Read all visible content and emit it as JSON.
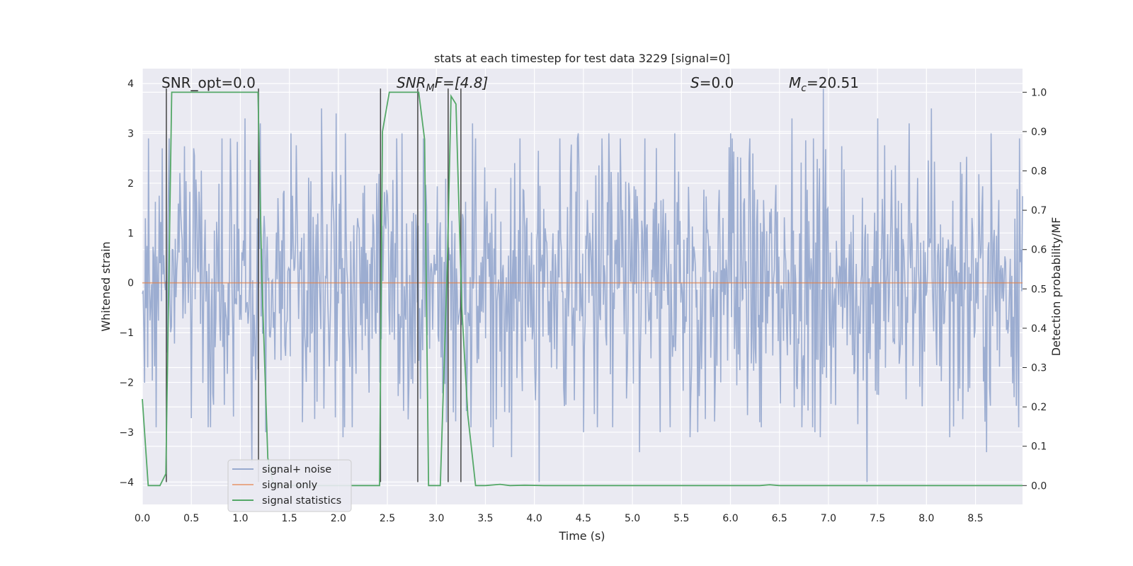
{
  "chart_data": {
    "type": "line",
    "title": "stats at each timestep for test data 3229 [signal=0]",
    "xlabel": "Time (s)",
    "ylabel": "Whitened strain",
    "ylabel_right": "Detection probability/MF",
    "xlim": [
      0.0,
      8.98
    ],
    "ylim": [
      -4.45,
      4.3
    ],
    "ylim_right": [
      -0.048,
      1.06
    ],
    "x_ticks": [
      0.0,
      0.5,
      1.0,
      1.5,
      2.0,
      2.5,
      3.0,
      3.5,
      4.0,
      4.5,
      5.0,
      5.5,
      6.0,
      6.5,
      7.0,
      7.5,
      8.0,
      8.5
    ],
    "x_tick_labels": [
      "0.0",
      "0.5",
      "1.0",
      "1.5",
      "2.0",
      "2.5",
      "3.0",
      "3.5",
      "4.0",
      "4.5",
      "5.0",
      "5.5",
      "6.0",
      "6.5",
      "7.0",
      "7.5",
      "8.0",
      "8.5"
    ],
    "y_ticks": [
      4,
      3,
      2,
      1,
      0,
      -1,
      -2,
      -3,
      -4
    ],
    "y_tick_labels": [
      "4",
      "3",
      "2",
      "1",
      "0",
      "−1",
      "−2",
      "−3",
      "−4"
    ],
    "y2_ticks": [
      1.0,
      0.9,
      0.8,
      0.7,
      0.6,
      0.5,
      0.4,
      0.3,
      0.2,
      0.1,
      0.0
    ],
    "y2_tick_labels": [
      "1.0",
      "0.9",
      "0.8",
      "0.7",
      "0.6",
      "0.5",
      "0.4",
      "0.3",
      "0.2",
      "0.1",
      "0.0"
    ],
    "annotations": {
      "snr_opt": "SNR_opt=0.0",
      "snr_mf_main": "SNR",
      "snr_mf_sub": "M",
      "snr_mf_rest": "F=[4.8]",
      "s_italic": "S",
      "s_rest": "=0.0",
      "mc_main": "M",
      "mc_sub": "c",
      "mc_rest": "=20.51"
    },
    "legend": {
      "position": "lower-left",
      "entries": [
        "signal+ noise",
        "signal only",
        "signal statistics"
      ]
    },
    "noise_series": {
      "name": "signal+ noise",
      "color": "#98aacf",
      "points": 1150,
      "typical_amplitude": 1.7,
      "peaks": [
        [
          0.2,
          2.7
        ],
        [
          0.52,
          2.7
        ],
        [
          0.9,
          2.9
        ],
        [
          1.05,
          3.3
        ],
        [
          1.12,
          -3.6
        ],
        [
          1.2,
          3.2
        ],
        [
          1.26,
          -3.0
        ],
        [
          1.52,
          3.0
        ],
        [
          1.63,
          -2.8
        ],
        [
          1.83,
          3.5
        ],
        [
          1.98,
          3.4
        ],
        [
          2.07,
          3.0
        ],
        [
          2.05,
          -3.1
        ],
        [
          2.65,
          3.0
        ],
        [
          3.1,
          -2.8
        ],
        [
          3.17,
          -2.6
        ],
        [
          3.37,
          3.2
        ],
        [
          3.58,
          -3.3
        ],
        [
          3.77,
          -3.5
        ],
        [
          3.85,
          2.9
        ],
        [
          4.05,
          -4.0
        ],
        [
          4.26,
          2.9
        ],
        [
          4.45,
          3.0
        ],
        [
          4.5,
          -3.0
        ],
        [
          4.76,
          3.0
        ],
        [
          4.8,
          -2.9
        ],
        [
          5.07,
          -3.4
        ],
        [
          5.13,
          2.9
        ],
        [
          5.28,
          -3.0
        ],
        [
          5.43,
          3.0
        ],
        [
          5.59,
          -3.1
        ],
        [
          5.67,
          -3.0
        ],
        [
          6.0,
          3.0
        ],
        [
          6.02,
          2.9
        ],
        [
          6.3,
          -2.8
        ],
        [
          6.63,
          3.3
        ],
        [
          6.86,
          -3.0
        ],
        [
          6.95,
          3.9
        ],
        [
          6.92,
          -3.1
        ],
        [
          7.39,
          -4.0
        ],
        [
          7.5,
          3.3
        ],
        [
          7.82,
          3.2
        ],
        [
          8.05,
          3.5
        ],
        [
          8.24,
          -3.1
        ],
        [
          8.61,
          -3.4
        ],
        [
          8.66,
          3.0
        ],
        [
          8.95,
          2.9
        ]
      ]
    },
    "signal_only": {
      "name": "signal only",
      "color": "#dd8452",
      "values": [
        [
          0.0,
          0.0
        ],
        [
          8.98,
          0.0
        ]
      ]
    },
    "statistics_series": {
      "name": "signal statistics",
      "color": "#55a868",
      "x": [
        0.0,
        0.06,
        0.18,
        0.24,
        0.3,
        0.36,
        0.5,
        1.18,
        1.22,
        1.28,
        1.34,
        1.45,
        2.0,
        2.38,
        2.42,
        2.45,
        2.52,
        2.62,
        2.82,
        2.88,
        2.92,
        3.04,
        3.11,
        3.15,
        3.2,
        3.26,
        3.32,
        3.4,
        3.5,
        3.65,
        3.75,
        3.9,
        4.1,
        6.3,
        6.4,
        6.5,
        8.98
      ],
      "y": [
        0.22,
        0.0,
        0.0,
        0.03,
        1.0,
        1.0,
        1.0,
        1.0,
        0.52,
        0.07,
        0.0,
        0.0,
        0.0,
        0.0,
        0.0,
        0.9,
        1.0,
        1.0,
        1.0,
        0.88,
        0.0,
        0.0,
        0.55,
        0.99,
        0.97,
        0.45,
        0.18,
        0.0,
        0.0,
        0.003,
        0.0,
        0.001,
        0.0,
        0.0,
        0.002,
        0.0,
        0.0
      ]
    },
    "vertical_lines": {
      "color": "#444444",
      "segments": [
        [
          0.245,
          -4.0,
          3.9
        ],
        [
          1.185,
          -4.0,
          3.9
        ],
        [
          2.43,
          -4.0,
          3.9
        ],
        [
          2.81,
          -4.0,
          3.9
        ],
        [
          3.12,
          -4.0,
          3.9
        ],
        [
          3.25,
          -4.0,
          3.9
        ]
      ]
    }
  }
}
